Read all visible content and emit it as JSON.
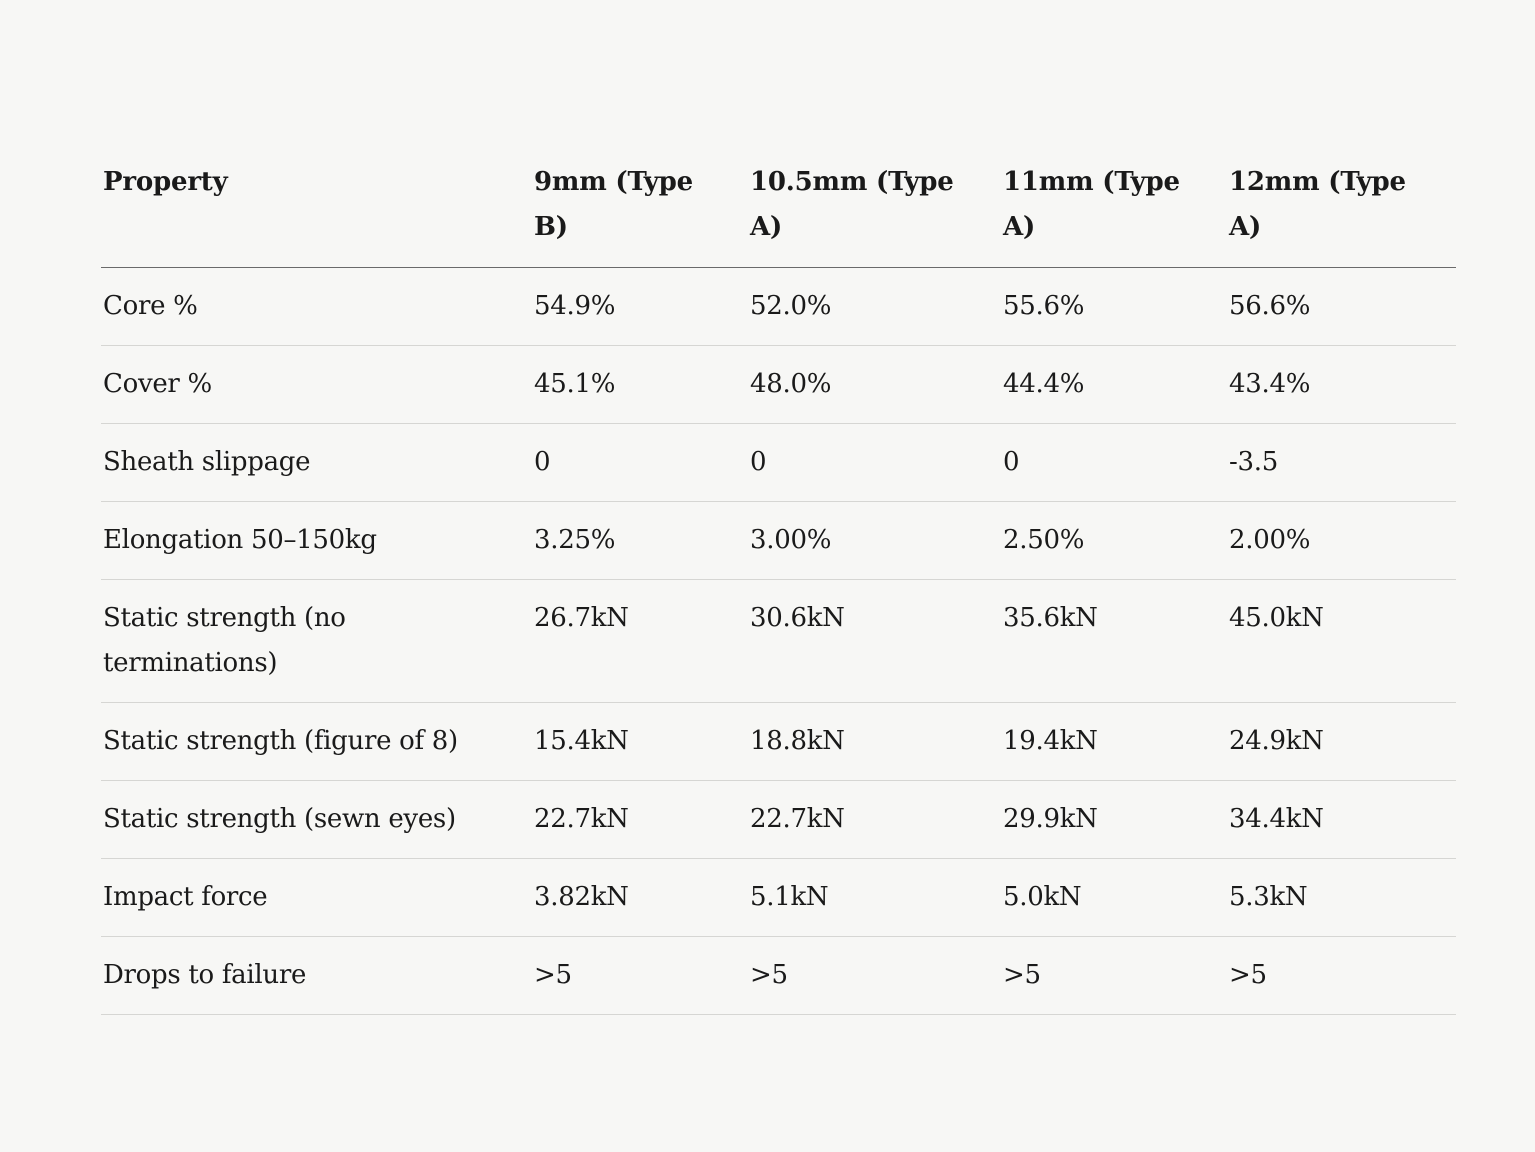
{
  "table": {
    "headers": [
      "Property",
      "9mm (Type B)",
      "10.5mm (Type A)",
      "11mm (Type A)",
      "12mm (Type A)"
    ],
    "rows": [
      [
        "Core %",
        "54.9%",
        "52.0%",
        "55.6%",
        "56.6%"
      ],
      [
        "Cover %",
        "45.1%",
        "48.0%",
        "44.4%",
        "43.4%"
      ],
      [
        "Sheath slippage",
        "0",
        "0",
        "0",
        "-3.5"
      ],
      [
        "Elongation 50–150kg",
        "3.25%",
        "3.00%",
        "2.50%",
        "2.00%"
      ],
      [
        "Static strength (no terminations)",
        "26.7kN",
        "30.6kN",
        "35.6kN",
        "45.0kN"
      ],
      [
        "Static strength (figure of 8)",
        "15.4kN",
        "18.8kN",
        "19.4kN",
        "24.9kN"
      ],
      [
        "Static strength (sewn eyes)",
        "22.7kN",
        "22.7kN",
        "29.9kN",
        "34.4kN"
      ],
      [
        "Impact force",
        "3.82kN",
        "5.1kN",
        "5.0kN",
        "5.3kN"
      ],
      [
        "Drops to failure",
        ">5",
        ">5",
        ">5",
        ">5"
      ]
    ]
  }
}
